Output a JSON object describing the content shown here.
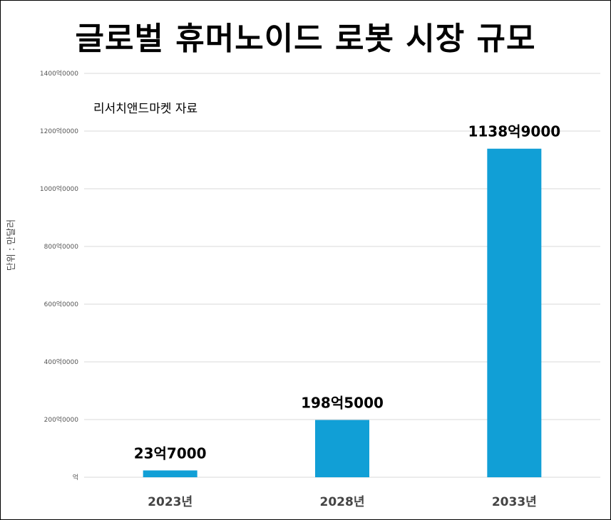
{
  "chart_data": {
    "type": "bar",
    "title": "글로벌 휴머노이드 로봇 시장 규모",
    "subtitle": "리서치앤드마켓 자료",
    "ylabel": "단위 : 만달러",
    "xlabel": "",
    "categories": [
      "2023년",
      "2028년",
      "2033년"
    ],
    "values": [
      237000,
      1985000,
      11389000
    ],
    "data_labels": [
      "23억7000",
      "198억5000",
      "1138억9000"
    ],
    "ylim": [
      0,
      14000000
    ],
    "y_ticks": [
      0,
      2000000,
      4000000,
      6000000,
      8000000,
      10000000,
      12000000,
      14000000
    ],
    "y_tick_labels": [
      "억",
      "200억0000",
      "400억0000",
      "600억0000",
      "800억0000",
      "1000억0000",
      "1200억0000",
      "1400억0000"
    ],
    "grid": true,
    "bar_color": "#119fd6",
    "grid_color": "#d9d9d9"
  }
}
